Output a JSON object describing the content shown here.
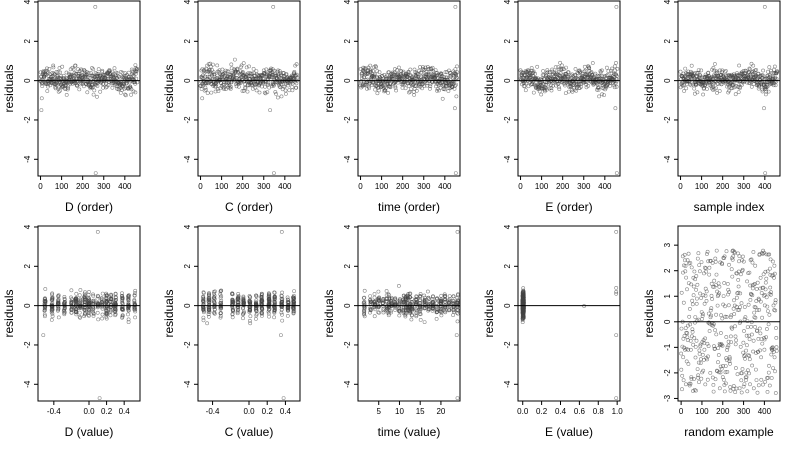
{
  "chart_data": [
    {
      "id": "p1",
      "type": "scatter",
      "xlabel": "D (order)",
      "ylabel": "residuals",
      "xlim": [
        -12,
        472
      ],
      "ylim": [
        -4.85,
        4.05
      ],
      "xticks": [
        "0",
        "100",
        "200",
        "300",
        "400"
      ],
      "xtick_values": [
        0,
        100,
        200,
        300,
        400
      ],
      "yticks": [
        "-4",
        "-2",
        "0",
        "2",
        "4"
      ],
      "ytick_values": [
        -4,
        -2,
        0,
        2,
        4
      ],
      "hline": 0,
      "pattern": "order",
      "seed": 11,
      "n": 460,
      "amplitude": 0.28,
      "outliers": [
        {
          "x": 4,
          "y": -1.5
        },
        {
          "x": 6,
          "y": -0.9
        },
        {
          "x": 260,
          "y": 3.75
        },
        {
          "x": 262,
          "y": -4.7
        },
        {
          "x": 450,
          "y": -0.6
        }
      ]
    },
    {
      "id": "p2",
      "type": "scatter",
      "xlabel": "C (order)",
      "ylabel": "residuals",
      "xlim": [
        -12,
        472
      ],
      "ylim": [
        -4.85,
        4.05
      ],
      "xticks": [
        "0",
        "100",
        "200",
        "300",
        "400"
      ],
      "xtick_values": [
        0,
        100,
        200,
        300,
        400
      ],
      "yticks": [
        "-4",
        "-2",
        "0",
        "2",
        "4"
      ],
      "ytick_values": [
        -4,
        -2,
        0,
        2,
        4
      ],
      "hline": 0,
      "pattern": "order",
      "seed": 23,
      "n": 460,
      "amplitude": 0.3,
      "outliers": [
        {
          "x": 330,
          "y": -1.5
        },
        {
          "x": 345,
          "y": 3.75
        },
        {
          "x": 348,
          "y": -4.7
        },
        {
          "x": 8,
          "y": -0.9
        }
      ]
    },
    {
      "id": "p3",
      "type": "scatter",
      "xlabel": "time (order)",
      "ylabel": "residuals",
      "xlim": [
        -12,
        472
      ],
      "ylim": [
        -4.85,
        4.05
      ],
      "xticks": [
        "0",
        "100",
        "200",
        "300",
        "400"
      ],
      "xtick_values": [
        0,
        100,
        200,
        300,
        400
      ],
      "yticks": [
        "-4",
        "-2",
        "0",
        "2",
        "4"
      ],
      "ytick_values": [
        -4,
        -2,
        0,
        2,
        4
      ],
      "hline": 0,
      "pattern": "order",
      "seed": 37,
      "n": 460,
      "amplitude": 0.28,
      "outliers": [
        {
          "x": 450,
          "y": 3.75
        },
        {
          "x": 452,
          "y": -4.7
        },
        {
          "x": 448,
          "y": -1.4
        },
        {
          "x": 455,
          "y": -0.8
        }
      ]
    },
    {
      "id": "p4",
      "type": "scatter",
      "xlabel": "E (order)",
      "ylabel": "residuals",
      "xlim": [
        -12,
        472
      ],
      "ylim": [
        -4.85,
        4.05
      ],
      "xticks": [
        "0",
        "100",
        "200",
        "300",
        "400"
      ],
      "xtick_values": [
        0,
        100,
        200,
        300,
        400
      ],
      "yticks": [
        "-4",
        "-2",
        "0",
        "2",
        "4"
      ],
      "ytick_values": [
        -4,
        -2,
        0,
        2,
        4
      ],
      "hline": 0,
      "pattern": "order",
      "seed": 41,
      "n": 460,
      "amplitude": 0.28,
      "outliers": [
        {
          "x": 455,
          "y": 3.75
        },
        {
          "x": 457,
          "y": -4.7
        },
        {
          "x": 450,
          "y": -1.4
        },
        {
          "x": 453,
          "y": 0.9
        }
      ]
    },
    {
      "id": "p5",
      "type": "scatter",
      "xlabel": "sample index",
      "ylabel": "residuals",
      "xlim": [
        -12,
        472
      ],
      "ylim": [
        -4.85,
        4.05
      ],
      "xticks": [
        "0",
        "100",
        "200",
        "300",
        "400"
      ],
      "xtick_values": [
        0,
        100,
        200,
        300,
        400
      ],
      "yticks": [
        "-4",
        "-2",
        "0",
        "2",
        "4"
      ],
      "ytick_values": [
        -4,
        -2,
        0,
        2,
        4
      ],
      "hline": 0,
      "pattern": "order",
      "seed": 53,
      "n": 460,
      "amplitude": 0.28,
      "outliers": [
        {
          "x": 400,
          "y": 3.75
        },
        {
          "x": 402,
          "y": -4.7
        },
        {
          "x": 396,
          "y": -1.4
        },
        {
          "x": 405,
          "y": -0.7
        }
      ]
    },
    {
      "id": "p6",
      "type": "scatter",
      "xlabel": "D (value)",
      "ylabel": "residuals",
      "xlim": [
        -0.58,
        0.58
      ],
      "ylim": [
        -4.85,
        4.05
      ],
      "xticks": [
        "-0.4",
        "0.0",
        "0.2",
        "0.4"
      ],
      "xtick_values": [
        -0.4,
        0.0,
        0.2,
        0.4
      ],
      "yticks": [
        "-4",
        "-2",
        "0",
        "2",
        "4"
      ],
      "ytick_values": [
        -4,
        -2,
        0,
        2,
        4
      ],
      "hline": 0,
      "pattern": "value",
      "seed": 61,
      "n": 460,
      "amplitude": 0.3,
      "x_range": [
        -0.55,
        0.55
      ],
      "clusters": [
        -0.5,
        -0.42,
        -0.35,
        -0.28,
        -0.2,
        -0.15,
        -0.1,
        -0.05,
        0,
        0.05,
        0.1,
        0.15,
        0.2,
        0.25,
        0.3,
        0.38,
        0.45,
        0.52
      ],
      "outliers": [
        {
          "x": 0.1,
          "y": 3.75
        },
        {
          "x": 0.12,
          "y": -4.7
        },
        {
          "x": -0.52,
          "y": -1.5
        },
        {
          "x": 0.45,
          "y": -0.7
        }
      ]
    },
    {
      "id": "p7",
      "type": "scatter",
      "xlabel": "C (value)",
      "ylabel": "residuals",
      "xlim": [
        -0.56,
        0.56
      ],
      "ylim": [
        -4.85,
        4.05
      ],
      "xticks": [
        "-0.4",
        "0.0",
        "0.2",
        "0.4"
      ],
      "xtick_values": [
        -0.4,
        0.0,
        0.2,
        0.4
      ],
      "yticks": [
        "-4",
        "-2",
        "0",
        "2",
        "4"
      ],
      "ytick_values": [
        -4,
        -2,
        0,
        2,
        4
      ],
      "hline": 0,
      "pattern": "value",
      "seed": 71,
      "n": 460,
      "amplitude": 0.3,
      "x_range": [
        -0.5,
        0.5
      ],
      "clusters": [
        -0.5,
        -0.44,
        -0.38,
        -0.31,
        -0.18,
        -0.12,
        -0.06,
        0.01,
        0.08,
        0.14,
        0.22,
        0.28,
        0.36,
        0.43,
        0.49
      ],
      "outliers": [
        {
          "x": 0.36,
          "y": 3.75
        },
        {
          "x": 0.38,
          "y": -4.7
        },
        {
          "x": 0.35,
          "y": -1.5
        },
        {
          "x": -0.46,
          "y": -0.9
        }
      ]
    },
    {
      "id": "p8",
      "type": "scatter",
      "xlabel": "time (value)",
      "ylabel": "residuals",
      "xlim": [
        0,
        24.6
      ],
      "ylim": [
        -4.85,
        4.05
      ],
      "xticks": [
        "5",
        "10",
        "15",
        "20"
      ],
      "xtick_values": [
        5,
        10,
        15,
        20
      ],
      "yticks": [
        "-4",
        "-2",
        "0",
        "2",
        "4"
      ],
      "ytick_values": [
        -4,
        -2,
        0,
        2,
        4
      ],
      "hline": 0,
      "pattern": "value",
      "seed": 83,
      "n": 460,
      "amplitude": 0.28,
      "x_range": [
        1,
        24
      ],
      "clusters": [
        1.5,
        3,
        4,
        5,
        6,
        7,
        7.5,
        8,
        9,
        10,
        11,
        11.5,
        12,
        12.5,
        13,
        14,
        15,
        16,
        17,
        18,
        19,
        20,
        21,
        22,
        23,
        24
      ],
      "outliers": [
        {
          "x": 24,
          "y": 3.75
        },
        {
          "x": 24,
          "y": -4.7
        },
        {
          "x": 23.8,
          "y": -1.5
        },
        {
          "x": 24,
          "y": -0.8
        }
      ]
    },
    {
      "id": "p9",
      "type": "scatter",
      "xlabel": "E (value)",
      "ylabel": "residuals",
      "xlim": [
        -0.05,
        1.03
      ],
      "ylim": [
        -4.85,
        4.05
      ],
      "xticks": [
        "0.0",
        "0.2",
        "0.4",
        "0.6",
        "0.8",
        "1.0"
      ],
      "xtick_values": [
        0,
        0.2,
        0.4,
        0.6,
        0.8,
        1.0
      ],
      "yticks": [
        "-4",
        "-2",
        "0",
        "2",
        "4"
      ],
      "ytick_values": [
        -4,
        -2,
        0,
        2,
        4
      ],
      "hline": 0,
      "pattern": "value",
      "seed": 97,
      "n": 420,
      "amplitude": 0.3,
      "x_range": [
        0,
        0.02
      ],
      "clusters": [
        0,
        0.005,
        0.01
      ],
      "outliers": [
        {
          "x": 0.99,
          "y": 3.75
        },
        {
          "x": 0.99,
          "y": -4.7
        },
        {
          "x": 0.99,
          "y": -1.5
        },
        {
          "x": 0.99,
          "y": 0.6
        },
        {
          "x": 0.99,
          "y": 0.9
        },
        {
          "x": 0.65,
          "y": -0.02
        },
        {
          "x": 0.99,
          "y": 0.7
        }
      ]
    },
    {
      "id": "p10",
      "type": "scatter",
      "xlabel": "random example",
      "ylabel": "residuals",
      "xlim": [
        -15,
        475
      ],
      "ylim": [
        -3.1,
        3.75
      ],
      "xticks": [
        "0",
        "100",
        "200",
        "300",
        "400"
      ],
      "xtick_values": [
        0,
        100,
        200,
        300,
        400
      ],
      "yticks": [
        "-3",
        "-2",
        "-1",
        "0",
        "1",
        "2",
        "3"
      ],
      "ytick_values": [
        -3,
        -2,
        -1,
        0,
        1,
        2,
        3
      ],
      "hline": 0,
      "pattern": "uniform",
      "seed": 109,
      "n": 460,
      "amplitude": 2.8,
      "outliers": []
    }
  ]
}
